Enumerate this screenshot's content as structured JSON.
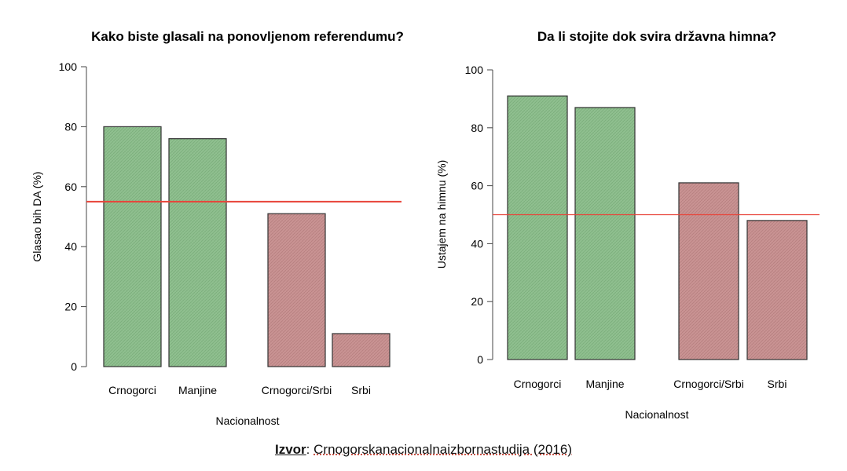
{
  "colors": {
    "green_fill": "#8fbf8f",
    "red_fill": "#c99393",
    "bar_stroke": "#333333",
    "ref_line": "#e8443a"
  },
  "chart_data": [
    {
      "type": "bar",
      "title": "Kako biste glasali na ponovljenom referendumu?",
      "categories": [
        "Crnogorci",
        "Manjine",
        "Crnogorci/Srbi",
        "Srbi"
      ],
      "values": [
        80,
        76,
        51,
        11
      ],
      "bar_colors": [
        "green",
        "green",
        "red",
        "red"
      ],
      "xlabel": "Nacionalnost",
      "ylabel": "Glasao bih DA (%)",
      "ylim": [
        0,
        100
      ],
      "yticks": [
        "0",
        "20",
        "40",
        "60",
        "80",
        "100"
      ],
      "reference_line": 55,
      "grid": false
    },
    {
      "type": "bar",
      "title": "Da li stojite dok svira državna himna?",
      "categories": [
        "Crnogorci",
        "Manjine",
        "Crnogorci/Srbi",
        "Srbi"
      ],
      "values": [
        91,
        87,
        61,
        48
      ],
      "bar_colors": [
        "green",
        "green",
        "red",
        "red"
      ],
      "xlabel": "Nacionalnost",
      "ylabel": "Ustajem na himnu (%)",
      "ylim": [
        0,
        100
      ],
      "yticks": [
        "0",
        "20",
        "40",
        "60",
        "80",
        "100"
      ],
      "reference_line": 50,
      "grid": false
    }
  ],
  "source": {
    "label": "Izvor",
    "text": "Crnogorskanacionalnaizbornastudija (2016)"
  }
}
